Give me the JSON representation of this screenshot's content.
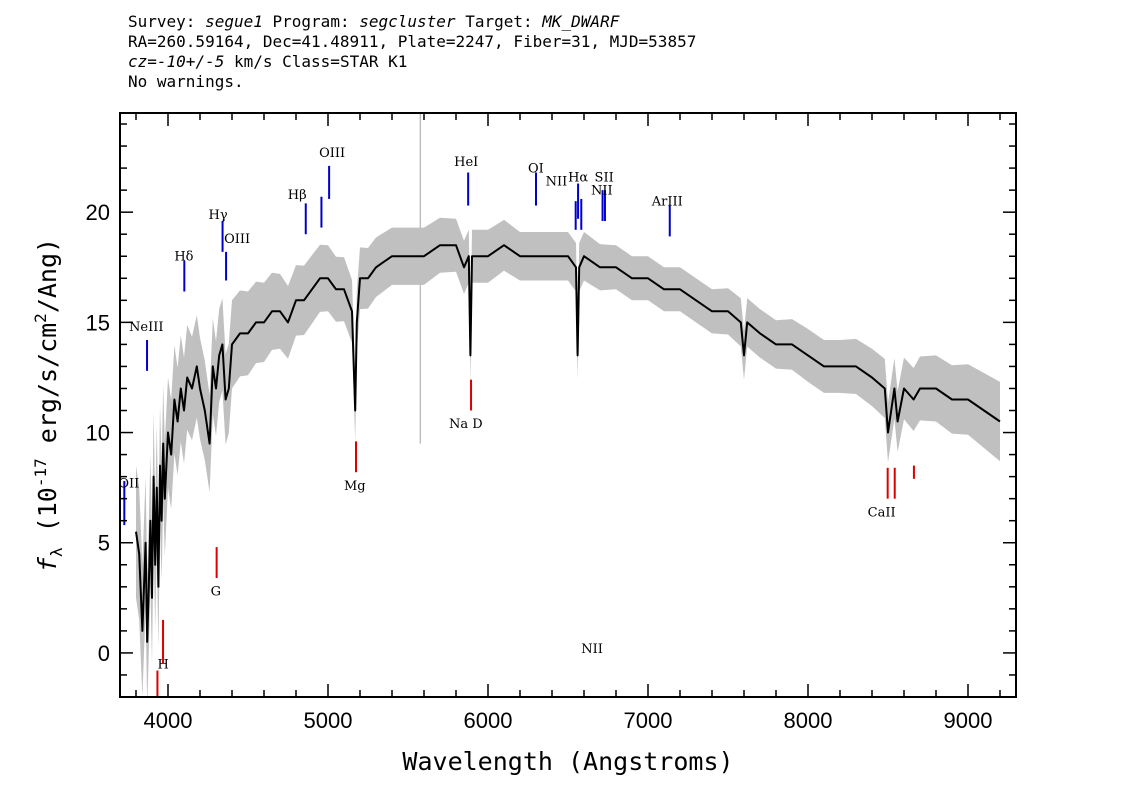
{
  "header": {
    "survey_label": "Survey:",
    "survey": "segue1",
    "program_label": "Program:",
    "program": "segcluster",
    "target_label": "Target:",
    "target": "MK_DWARF",
    "line2": "RA=260.59164, Dec=41.48911, Plate=2247, Fiber=31, MJD=53857",
    "cz_label": "cz=",
    "cz_value": "-10+/-5",
    "cz_rest": " km/s  Class=STAR  K1",
    "line4": "No warnings."
  },
  "chart_data": {
    "type": "line",
    "xlabel": "Wavelength (Angstroms)",
    "ylabel_prefix": "f",
    "ylabel_sub": "λ",
    "ylabel_main": " (10",
    "ylabel_exp": "-17",
    "ylabel_rest": " erg/s/cm",
    "ylabel_exp2": "2",
    "ylabel_end": "/Ang)",
    "xlim": [
      3700,
      9300
    ],
    "ylim": [
      -2,
      24.5
    ],
    "x_ticks": [
      4000,
      5000,
      6000,
      7000,
      8000,
      9000
    ],
    "x_tick_labels": [
      "4000",
      "5000",
      "6000",
      "7000",
      "8000",
      "9000"
    ],
    "y_ticks": [
      0,
      5,
      10,
      15,
      20
    ],
    "y_tick_labels": [
      "0",
      "5",
      "10",
      "15",
      "20"
    ],
    "colors": {
      "flux": "#000000",
      "error": "#c0c0c0",
      "emission": "#0000cc",
      "absorption": "#dd0000"
    },
    "series": [
      {
        "x": [
          3800,
          3820,
          3840,
          3860,
          3870,
          3880,
          3890,
          3900,
          3910,
          3920,
          3930,
          3940,
          3950,
          3960,
          3970,
          3980,
          4000,
          4020,
          4040,
          4060,
          4080,
          4100,
          4120,
          4150,
          4180,
          4200,
          4230,
          4260,
          4280,
          4300,
          4320,
          4340,
          4360,
          4380,
          4400,
          4450,
          4500,
          4550,
          4600,
          4650,
          4700,
          4750,
          4800,
          4850,
          4900,
          4950,
          5000,
          5050,
          5100,
          5150,
          5170,
          5180,
          5200,
          5250,
          5300,
          5400,
          5500,
          5600,
          5700,
          5800,
          5850,
          5880,
          5890,
          5900,
          5950,
          6000,
          6100,
          6200,
          6300,
          6400,
          6500,
          6550,
          6560,
          6570,
          6600,
          6700,
          6800,
          6900,
          7000,
          7100,
          7200,
          7300,
          7400,
          7500,
          7580,
          7600,
          7620,
          7700,
          7800,
          7900,
          8000,
          8100,
          8200,
          8300,
          8400,
          8480,
          8500,
          8540,
          8560,
          8600,
          8660,
          8700,
          8800,
          8900,
          9000,
          9100,
          9200
        ],
        "y": [
          5.5,
          4.5,
          1.0,
          5.0,
          0.5,
          3.0,
          6.0,
          2.5,
          8.0,
          4.0,
          7.5,
          3.0,
          8.5,
          6.0,
          9.5,
          7.0,
          10.0,
          9.0,
          11.5,
          10.5,
          12.0,
          11.0,
          12.5,
          12.0,
          13.0,
          12.0,
          11.0,
          9.5,
          13.0,
          12.0,
          13.5,
          14.0,
          11.5,
          12.0,
          14.0,
          14.5,
          14.5,
          15.0,
          15.0,
          15.5,
          15.5,
          15.0,
          16.0,
          16.0,
          16.5,
          17.0,
          17.0,
          16.5,
          16.5,
          15.5,
          11.0,
          15.0,
          17.0,
          17.0,
          17.5,
          18.0,
          18.0,
          18.0,
          18.5,
          18.5,
          17.5,
          18.0,
          13.5,
          18.0,
          18.0,
          18.0,
          18.5,
          18.0,
          18.0,
          18.0,
          18.0,
          17.5,
          13.5,
          17.5,
          18.0,
          17.5,
          17.5,
          17.0,
          17.0,
          16.5,
          16.5,
          16.0,
          15.5,
          15.5,
          15.0,
          13.5,
          15.0,
          14.5,
          14.0,
          14.0,
          13.5,
          13.0,
          13.0,
          13.0,
          12.5,
          12.0,
          10.0,
          12.0,
          10.5,
          12.0,
          11.5,
          12.0,
          12.0,
          11.5,
          11.5,
          11.0,
          10.5
        ]
      }
    ],
    "error_band": {
      "x": [
        3800,
        3900,
        4000,
        4200,
        4400,
        4600,
        4800,
        5000,
        5200,
        5400,
        5600,
        5800,
        6000,
        6200,
        6400,
        6600,
        6800,
        7000,
        7200,
        7400,
        7600,
        7800,
        8000,
        8200,
        8400,
        8600,
        8800,
        9000,
        9200
      ],
      "half_width": [
        3.0,
        3.0,
        2.5,
        2.3,
        2.0,
        1.8,
        1.6,
        1.5,
        1.4,
        1.3,
        1.3,
        1.2,
        1.2,
        1.1,
        1.1,
        1.1,
        1.0,
        1.0,
        1.0,
        1.0,
        1.1,
        1.1,
        1.2,
        1.2,
        1.3,
        1.4,
        1.5,
        1.6,
        1.8
      ]
    },
    "emission_lines": [
      {
        "label": "OII",
        "x": 3727,
        "y1": 5.8,
        "y2": 7.8,
        "label_y": 7.5,
        "dx": -6
      },
      {
        "label": "NeIII",
        "x": 3869,
        "y1": 12.8,
        "y2": 14.2,
        "label_y": 14.6,
        "dx": -18
      },
      {
        "label": "Hδ",
        "x": 4102,
        "y1": 16.4,
        "y2": 17.8,
        "label_y": 17.8,
        "dx": -10
      },
      {
        "label": "Hγ",
        "x": 4341,
        "y1": 18.2,
        "y2": 19.6,
        "label_y": 19.7,
        "dx": -14
      },
      {
        "label": "OIII",
        "x": 4363,
        "y1": 16.9,
        "y2": 18.2,
        "label_y": 18.6,
        "dx": -2
      },
      {
        "label": "Hβ",
        "x": 4861,
        "y1": 19.0,
        "y2": 20.4,
        "label_y": 20.6,
        "dx": -18
      },
      {
        "label": "",
        "x": 4959,
        "y1": 19.3,
        "y2": 20.7,
        "label_y": 0,
        "dx": 0
      },
      {
        "label": "OIII",
        "x": 5007,
        "y1": 20.6,
        "y2": 22.1,
        "label_y": 22.5,
        "dx": -10
      },
      {
        "label": "HeI",
        "x": 5876,
        "y1": 20.3,
        "y2": 21.8,
        "label_y": 22.1,
        "dx": -14
      },
      {
        "label": "OI",
        "x": 6300,
        "y1": 20.3,
        "y2": 21.8,
        "label_y": 21.8,
        "dx": -8
      },
      {
        "label": "NII",
        "x": 6548,
        "y1": 19.2,
        "y2": 20.5,
        "label_y": 21.2,
        "dx": -30
      },
      {
        "label": "Hα",
        "x": 6563,
        "y1": 19.7,
        "y2": 21.3,
        "label_y": 21.4,
        "dx": -10
      },
      {
        "label": "NII",
        "x": 6583,
        "y1": 19.2,
        "y2": 20.6,
        "label_y": 0,
        "dx": 0
      },
      {
        "label": "SII",
        "x": 6716,
        "y1": 19.6,
        "y2": 21.0,
        "label_y": 21.4,
        "dx": -8
      },
      {
        "label": "NII",
        "x": 6731,
        "y1": 19.6,
        "y2": 21.0,
        "label_y": 20.8,
        "dx": -14
      },
      {
        "label": "ArIII",
        "x": 7136,
        "y1": 18.9,
        "y2": 20.3,
        "label_y": 20.3,
        "dx": -18
      }
    ],
    "absorption_lines": [
      {
        "label": "H",
        "x": 3934,
        "y1": -2.0,
        "y2": -0.8,
        "label_y": -0.7,
        "dx": 0
      },
      {
        "label": "",
        "x": 3969,
        "y1": -0.5,
        "y2": 1.5,
        "label_y": 0,
        "dx": 0
      },
      {
        "label": "G",
        "x": 4304,
        "y1": 3.4,
        "y2": 4.8,
        "label_y": 2.6,
        "dx": -6
      },
      {
        "label": "Mg",
        "x": 5175,
        "y1": 8.2,
        "y2": 9.6,
        "label_y": 7.4,
        "dx": -12
      },
      {
        "label": "Na D",
        "x": 5894,
        "y1": 11.0,
        "y2": 12.4,
        "label_y": 10.2,
        "dx": -22
      },
      {
        "label": "CaII",
        "x": 8498,
        "y1": 7.0,
        "y2": 8.4,
        "label_y": 6.2,
        "dx": -20
      },
      {
        "label": "",
        "x": 8542,
        "y1": 7.0,
        "y2": 8.4,
        "label_y": 0,
        "dx": 0
      },
      {
        "label": "",
        "x": 8662,
        "y1": 7.9,
        "y2": 8.5,
        "label_y": 0,
        "dx": 0
      }
    ],
    "vertical_markers": [
      {
        "x": 5577,
        "y1": 9.5,
        "y2": 24.5
      }
    ]
  }
}
